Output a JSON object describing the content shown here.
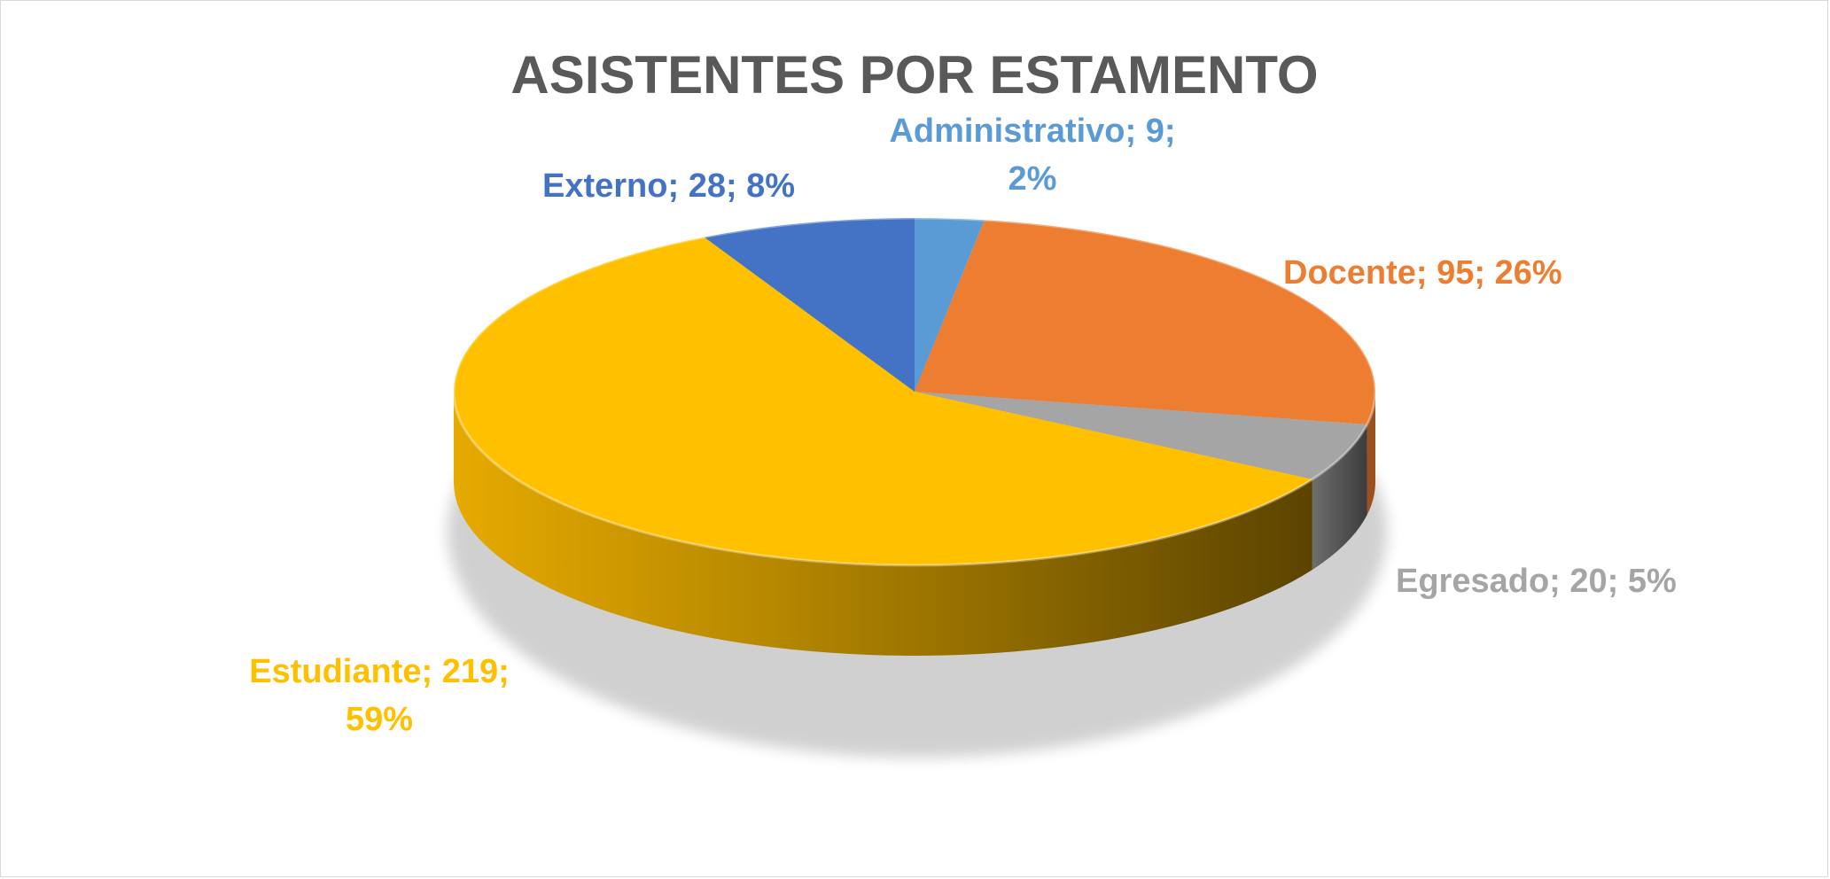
{
  "chart_data": {
    "type": "pie",
    "title": "ASISTENTES POR ESTAMENTO",
    "slices": [
      {
        "name": "Administrativo",
        "value": 9,
        "percent": 2,
        "color": "#5B9BD5",
        "label_lines": [
          "Administrativo; 9;",
          "2%"
        ]
      },
      {
        "name": "Docente",
        "value": 95,
        "percent": 26,
        "color": "#ED7D31",
        "label_lines": [
          "Docente; 95; 26%"
        ]
      },
      {
        "name": "Egresado",
        "value": 20,
        "percent": 5,
        "color": "#A5A5A5",
        "label_lines": [
          "Egresado; 20; 5%"
        ]
      },
      {
        "name": "Estudiante",
        "value": 219,
        "percent": 59,
        "color": "#FFC000",
        "label_lines": [
          "Estudiante; 219;",
          "59%"
        ]
      },
      {
        "name": "Externo",
        "value": 28,
        "percent": 8,
        "color": "#4472C4",
        "label_lines": [
          "Externo; 28; 8%"
        ]
      }
    ],
    "legend": "none",
    "style": "3d-pie"
  }
}
